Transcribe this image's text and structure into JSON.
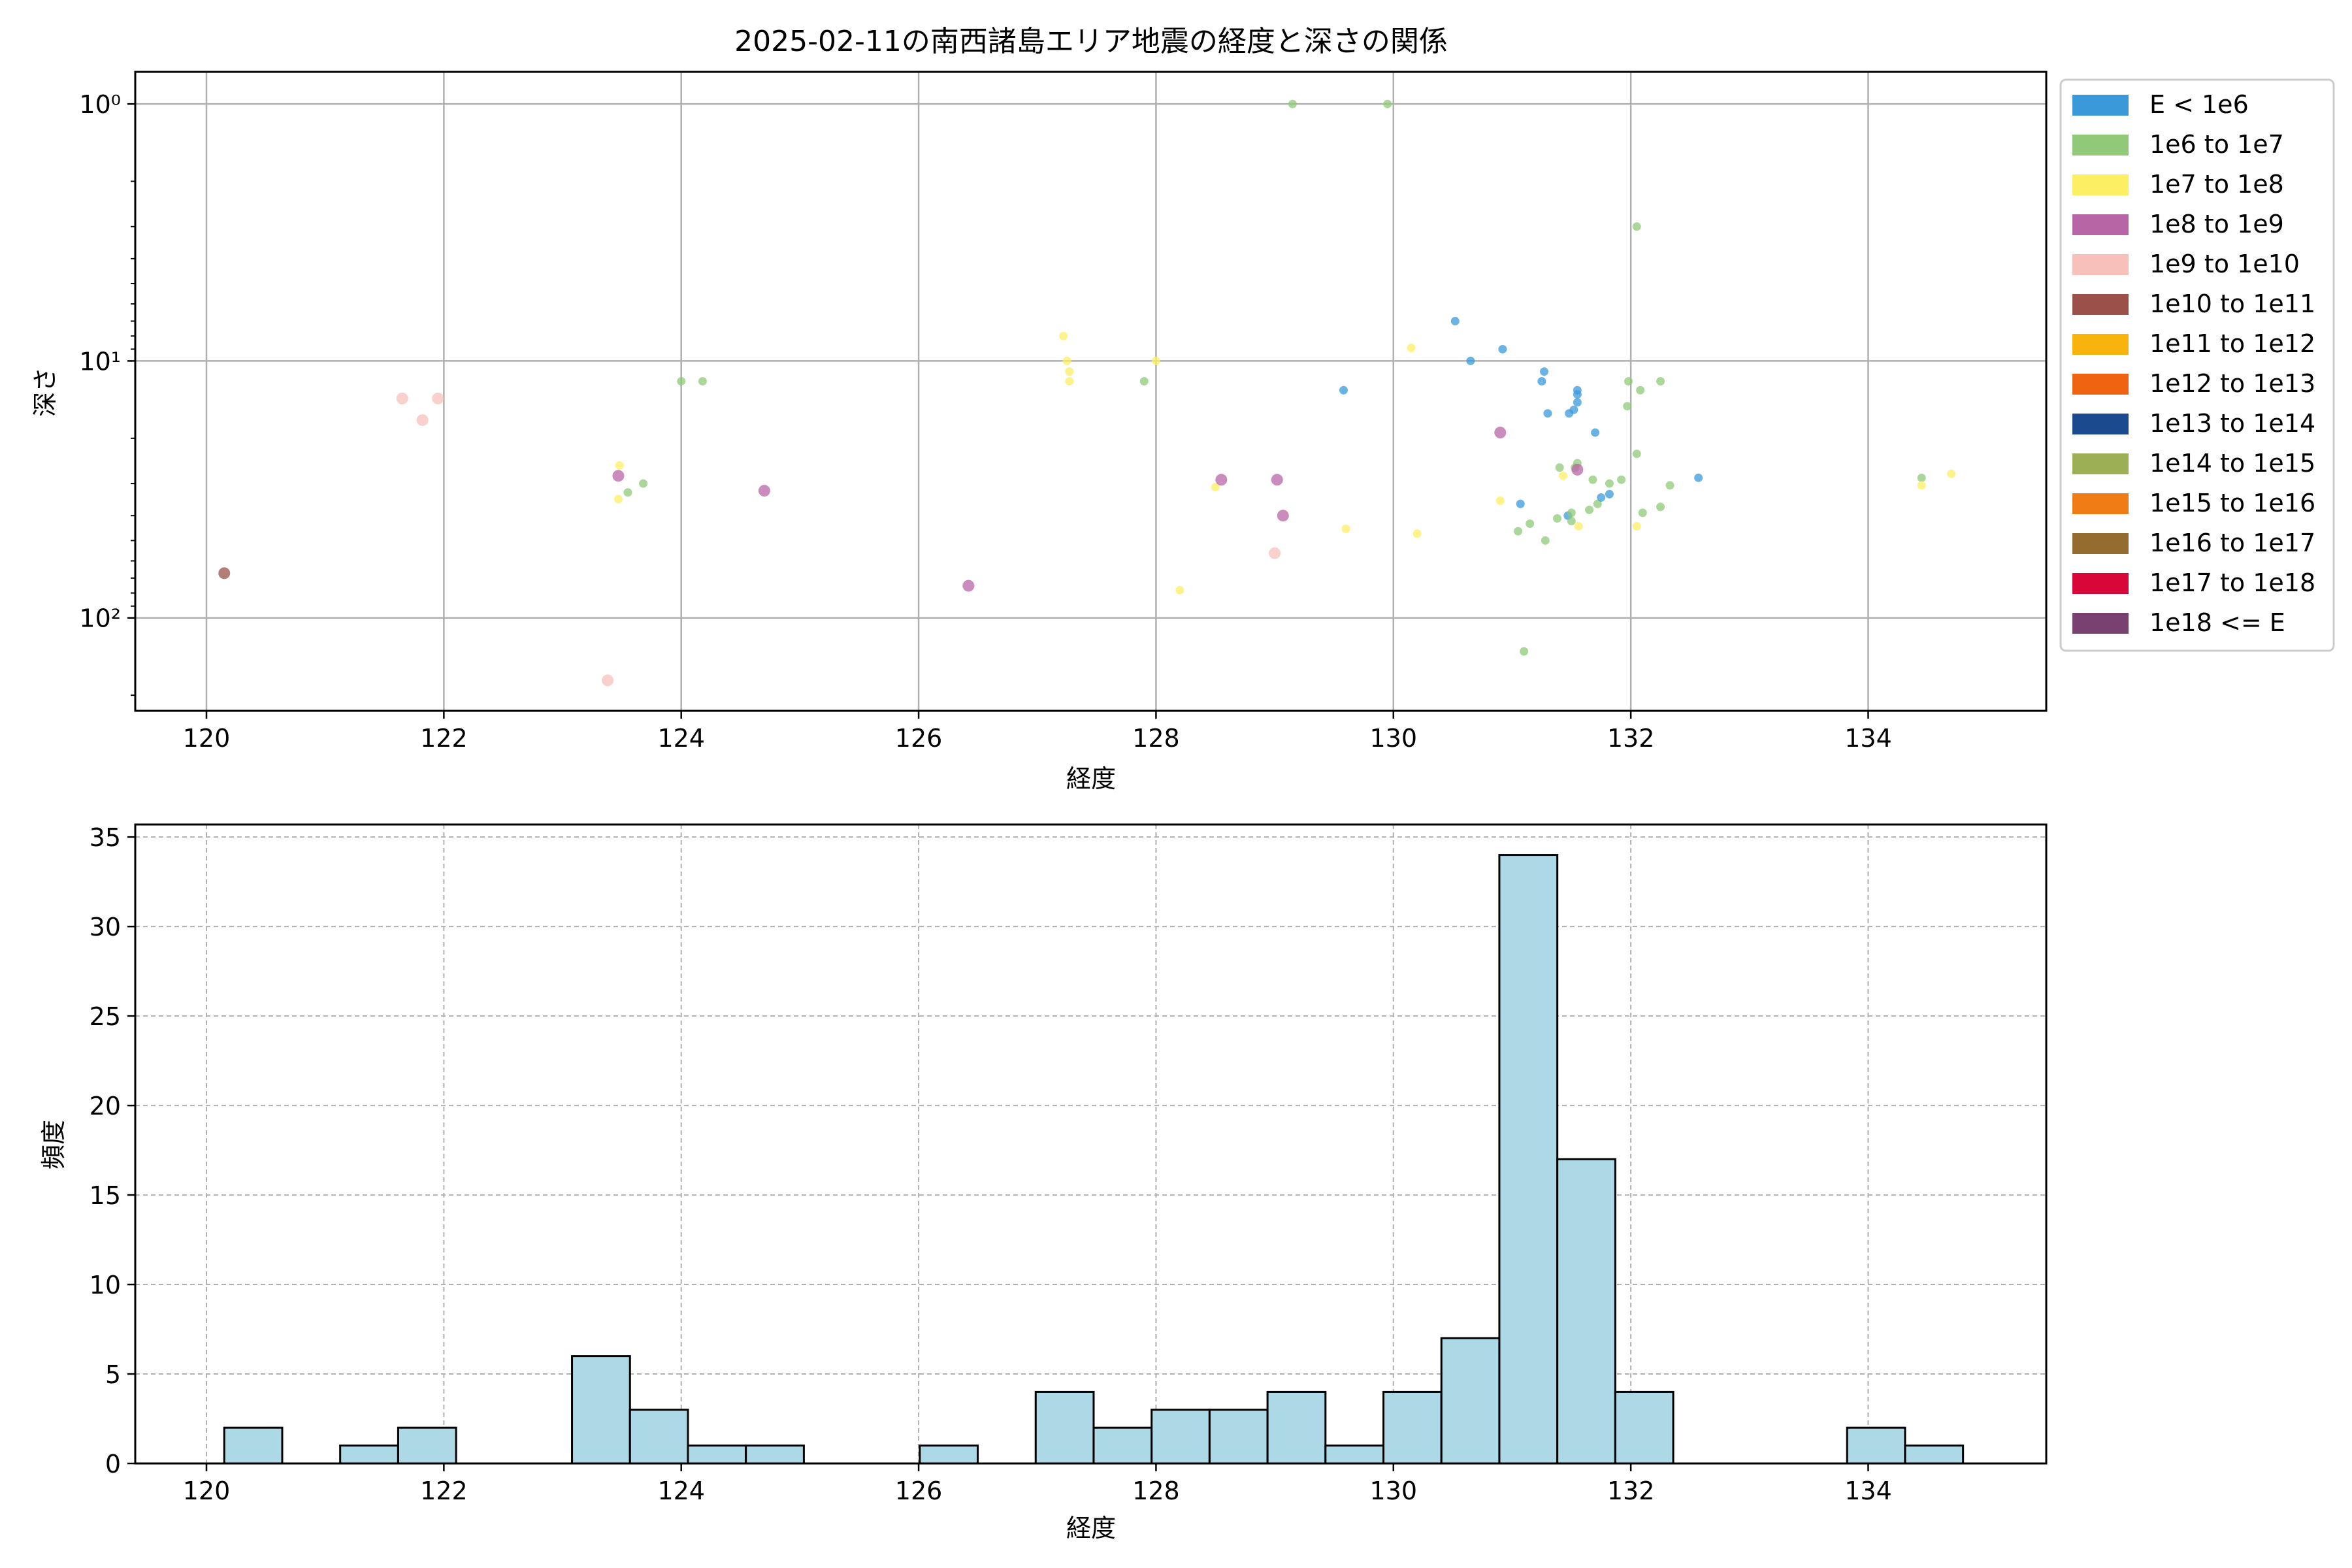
{
  "chart_data": [
    {
      "type": "scatter",
      "title": "2025-02-11の南西諸島エリア地震の経度と深さの関係",
      "xlabel": "経度",
      "ylabel": "深さ",
      "xlim": [
        119.4,
        135.5
      ],
      "ylim": [
        230,
        0.75
      ],
      "y_scale": "log",
      "y_inverted": true,
      "x_ticks": [
        120,
        122,
        124,
        126,
        128,
        130,
        132,
        134
      ],
      "x_tick_labels": [
        "120",
        "122",
        "124",
        "126",
        "128",
        "130",
        "132",
        "134"
      ],
      "y_ticks": [
        1,
        10,
        100
      ],
      "y_tick_labels": [
        "10⁰",
        "10¹",
        "10²"
      ],
      "grid": true,
      "legend_position": "outside-right",
      "legend": [
        {
          "label": "E < 1e6",
          "color": "#3a9ad9"
        },
        {
          "label": "1e6 to 1e7",
          "color": "#90c978"
        },
        {
          "label": "1e7 to 1e8",
          "color": "#fdef63"
        },
        {
          "label": "1e8 to 1e9",
          "color": "#b865a6"
        },
        {
          "label": "1e9 to 1e10",
          "color": "#f7c0ba"
        },
        {
          "label": "1e10 to 1e11",
          "color": "#9b5149"
        },
        {
          "label": "1e11 to 1e12",
          "color": "#f8b30d"
        },
        {
          "label": "1e12 to 1e13",
          "color": "#ef6410"
        },
        {
          "label": "1e13 to 1e14",
          "color": "#1c4a8f"
        },
        {
          "label": "1e14 to 1e15",
          "color": "#9caf55"
        },
        {
          "label": "1e15 to 1e16",
          "color": "#ef7c14"
        },
        {
          "label": "1e16 to 1e17",
          "color": "#946c30"
        },
        {
          "label": "1e17 to 1e18",
          "color": "#d9063a"
        },
        {
          "label": "1e18 <= E",
          "color": "#794170"
        }
      ],
      "points": [
        {
          "x": 120.15,
          "y": 67,
          "cls": 5
        },
        {
          "x": 121.65,
          "y": 14,
          "cls": 4
        },
        {
          "x": 121.95,
          "y": 14,
          "cls": 4
        },
        {
          "x": 121.82,
          "y": 17,
          "cls": 4
        },
        {
          "x": 123.38,
          "y": 175,
          "cls": 4
        },
        {
          "x": 123.48,
          "y": 25.5,
          "cls": 2
        },
        {
          "x": 123.47,
          "y": 28,
          "cls": 3
        },
        {
          "x": 123.47,
          "y": 34.5,
          "cls": 2
        },
        {
          "x": 123.55,
          "y": 32.5,
          "cls": 1
        },
        {
          "x": 123.68,
          "y": 30,
          "cls": 1
        },
        {
          "x": 124.0,
          "y": 12,
          "cls": 1
        },
        {
          "x": 124.18,
          "y": 12,
          "cls": 1
        },
        {
          "x": 124.7,
          "y": 32,
          "cls": 3
        },
        {
          "x": 126.42,
          "y": 75,
          "cls": 3
        },
        {
          "x": 127.22,
          "y": 8,
          "cls": 2
        },
        {
          "x": 127.25,
          "y": 10,
          "cls": 2
        },
        {
          "x": 127.27,
          "y": 11,
          "cls": 2
        },
        {
          "x": 127.27,
          "y": 12,
          "cls": 2
        },
        {
          "x": 127.9,
          "y": 12,
          "cls": 1
        },
        {
          "x": 128.0,
          "y": 10,
          "cls": 2
        },
        {
          "x": 128.2,
          "y": 78,
          "cls": 2
        },
        {
          "x": 128.5,
          "y": 31,
          "cls": 2
        },
        {
          "x": 128.55,
          "y": 29,
          "cls": 3
        },
        {
          "x": 129.0,
          "y": 56,
          "cls": 4
        },
        {
          "x": 129.02,
          "y": 29,
          "cls": 3
        },
        {
          "x": 129.07,
          "y": 40,
          "cls": 3
        },
        {
          "x": 129.15,
          "y": 1.0,
          "cls": 1
        },
        {
          "x": 129.58,
          "y": 13,
          "cls": 0
        },
        {
          "x": 129.6,
          "y": 45,
          "cls": 2
        },
        {
          "x": 129.95,
          "y": 1.0,
          "cls": 1
        },
        {
          "x": 130.15,
          "y": 8.9,
          "cls": 2
        },
        {
          "x": 130.2,
          "y": 47,
          "cls": 2
        },
        {
          "x": 130.52,
          "y": 7,
          "cls": 0
        },
        {
          "x": 130.65,
          "y": 10,
          "cls": 0
        },
        {
          "x": 130.9,
          "y": 19,
          "cls": 3
        },
        {
          "x": 130.9,
          "y": 35,
          "cls": 2
        },
        {
          "x": 130.92,
          "y": 9,
          "cls": 0
        },
        {
          "x": 131.05,
          "y": 46,
          "cls": 1
        },
        {
          "x": 131.07,
          "y": 36,
          "cls": 0
        },
        {
          "x": 131.1,
          "y": 135,
          "cls": 1
        },
        {
          "x": 131.15,
          "y": 43,
          "cls": 1
        },
        {
          "x": 131.25,
          "y": 12,
          "cls": 0
        },
        {
          "x": 131.27,
          "y": 11,
          "cls": 0
        },
        {
          "x": 131.28,
          "y": 50,
          "cls": 1
        },
        {
          "x": 131.3,
          "y": 16,
          "cls": 0
        },
        {
          "x": 131.38,
          "y": 41,
          "cls": 1
        },
        {
          "x": 131.4,
          "y": 26,
          "cls": 1
        },
        {
          "x": 131.43,
          "y": 28,
          "cls": 2
        },
        {
          "x": 131.47,
          "y": 40,
          "cls": 0
        },
        {
          "x": 131.48,
          "y": 16,
          "cls": 0
        },
        {
          "x": 131.5,
          "y": 39,
          "cls": 1
        },
        {
          "x": 131.5,
          "y": 42,
          "cls": 1
        },
        {
          "x": 131.52,
          "y": 15.5,
          "cls": 0
        },
        {
          "x": 131.53,
          "y": 26,
          "cls": 1
        },
        {
          "x": 131.55,
          "y": 25,
          "cls": 1
        },
        {
          "x": 131.55,
          "y": 13,
          "cls": 0
        },
        {
          "x": 131.55,
          "y": 13.5,
          "cls": 0
        },
        {
          "x": 131.55,
          "y": 14.5,
          "cls": 0
        },
        {
          "x": 131.55,
          "y": 26.5,
          "cls": 3
        },
        {
          "x": 131.56,
          "y": 44,
          "cls": 2
        },
        {
          "x": 131.65,
          "y": 38,
          "cls": 1
        },
        {
          "x": 131.68,
          "y": 29,
          "cls": 1
        },
        {
          "x": 131.7,
          "y": 19,
          "cls": 0
        },
        {
          "x": 131.72,
          "y": 36,
          "cls": 1
        },
        {
          "x": 131.75,
          "y": 34,
          "cls": 0
        },
        {
          "x": 131.82,
          "y": 33,
          "cls": 0
        },
        {
          "x": 131.82,
          "y": 30,
          "cls": 1
        },
        {
          "x": 131.92,
          "y": 29,
          "cls": 1
        },
        {
          "x": 131.97,
          "y": 15,
          "cls": 1
        },
        {
          "x": 131.98,
          "y": 12,
          "cls": 1
        },
        {
          "x": 132.05,
          "y": 3,
          "cls": 1
        },
        {
          "x": 132.05,
          "y": 23,
          "cls": 1
        },
        {
          "x": 132.05,
          "y": 44,
          "cls": 2
        },
        {
          "x": 132.08,
          "y": 13,
          "cls": 1
        },
        {
          "x": 132.1,
          "y": 39,
          "cls": 1
        },
        {
          "x": 132.25,
          "y": 37,
          "cls": 1
        },
        {
          "x": 132.25,
          "y": 12,
          "cls": 1
        },
        {
          "x": 132.33,
          "y": 30.5,
          "cls": 1
        },
        {
          "x": 132.57,
          "y": 28.5,
          "cls": 0
        },
        {
          "x": 134.45,
          "y": 28.5,
          "cls": 1
        },
        {
          "x": 134.45,
          "y": 30.5,
          "cls": 2
        },
        {
          "x": 134.7,
          "y": 27.5,
          "cls": 2
        }
      ]
    },
    {
      "type": "histogram",
      "title": "",
      "xlabel": "経度",
      "ylabel": "頻度",
      "xlim": [
        119.4,
        135.5
      ],
      "ylim": [
        0,
        35.7
      ],
      "x_ticks": [
        120,
        122,
        124,
        126,
        128,
        130,
        132,
        134
      ],
      "x_tick_labels": [
        "120",
        "122",
        "124",
        "126",
        "128",
        "130",
        "132",
        "134"
      ],
      "y_ticks": [
        0,
        5,
        10,
        15,
        20,
        25,
        30,
        35
      ],
      "y_tick_labels": [
        "0",
        "5",
        "10",
        "15",
        "20",
        "25",
        "30",
        "35"
      ],
      "grid": true,
      "bar_color": "#add8e6",
      "bin_start": 120.15,
      "bin_width": 0.4883,
      "counts": [
        2,
        0,
        1,
        2,
        0,
        0,
        6,
        3,
        1,
        1,
        0,
        0,
        1,
        0,
        4,
        2,
        3,
        3,
        4,
        1,
        4,
        7,
        34,
        17,
        4,
        0,
        0,
        0,
        2,
        1
      ]
    }
  ]
}
